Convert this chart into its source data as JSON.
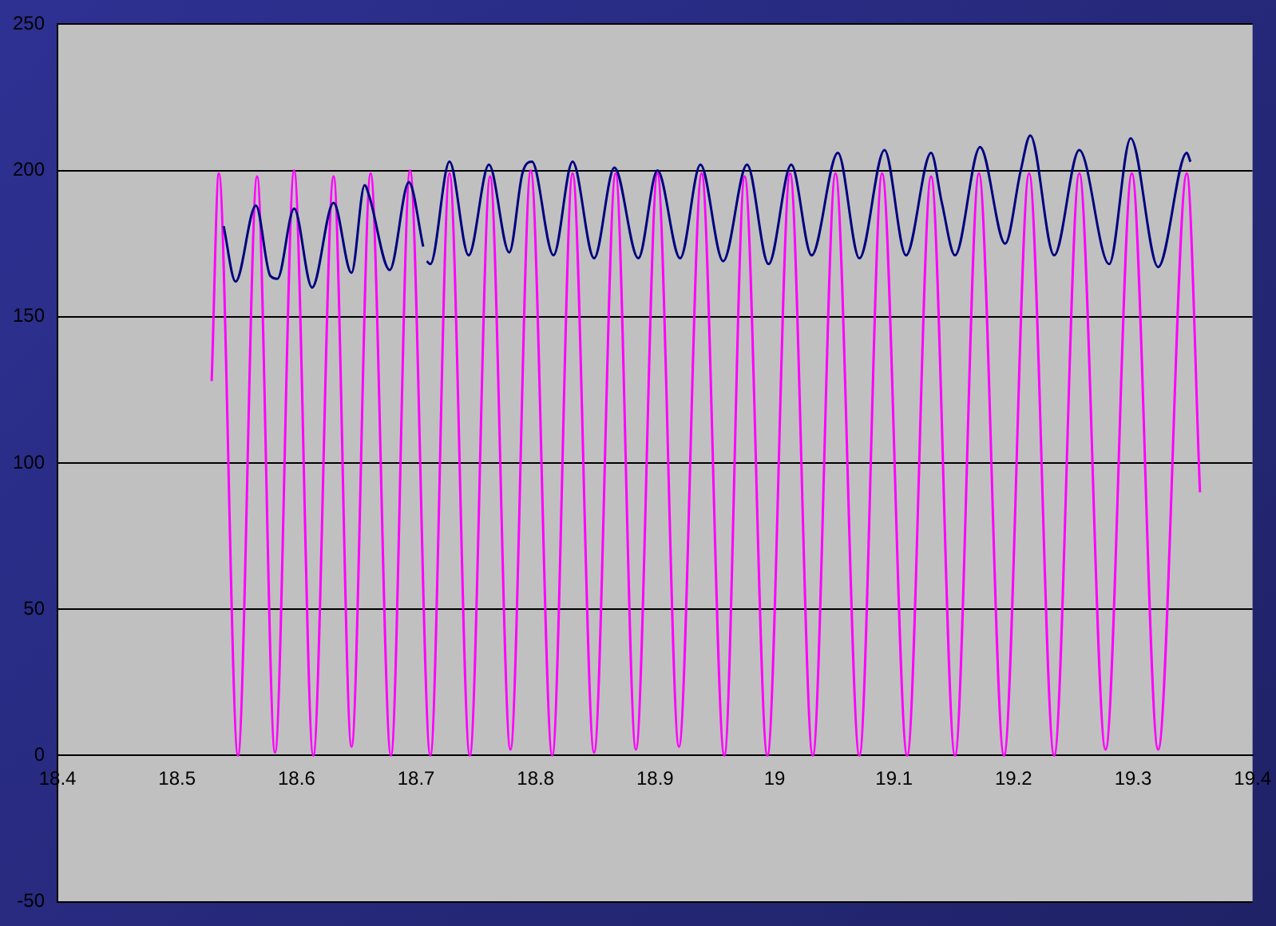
{
  "chart_data": {
    "type": "line",
    "xlim": [
      18.4,
      19.4
    ],
    "xticks": [
      18.4,
      18.5,
      18.6,
      18.7,
      18.8,
      18.9,
      19,
      19.1,
      19.2,
      19.3,
      19.4
    ],
    "ylim": [
      -50,
      250
    ],
    "yticks": [
      -50,
      0,
      50,
      100,
      150,
      200,
      250
    ],
    "grid": "y",
    "legend": false,
    "marker": "none",
    "line_style": "solid",
    "series": [
      {
        "color": "#000080",
        "x": [
          18.539,
          18.549,
          18.566,
          18.578,
          18.584,
          18.598,
          18.613,
          18.631,
          18.646,
          18.657,
          18.661,
          18.678,
          18.694,
          18.706,
          18.7075,
          18.709,
          18.712,
          18.728,
          18.744,
          18.761,
          18.778,
          18.789,
          18.797,
          18.815,
          18.831,
          18.849,
          18.866,
          18.886,
          18.902,
          18.921,
          18.938,
          18.957,
          18.977,
          18.995,
          19.014,
          19.031,
          19.053,
          19.071,
          19.092,
          19.11,
          19.131,
          19.14,
          19.151,
          19.172,
          19.193,
          19.206,
          19.214,
          19.234,
          19.255,
          19.28,
          19.298,
          19.321,
          19.345,
          19.348
        ],
        "values": [
          181,
          162,
          188,
          164,
          163,
          187,
          160,
          189,
          165,
          195,
          191,
          166,
          196,
          174,
          null,
          169,
          168,
          203,
          171,
          202,
          172,
          199,
          203,
          171,
          203,
          170,
          201,
          170,
          200,
          170,
          202,
          169,
          202,
          168,
          202,
          171,
          206,
          170,
          207,
          171,
          206,
          189,
          171,
          208,
          175,
          200,
          212,
          171,
          207,
          168,
          211,
          167,
          206,
          203
        ]
      },
      {
        "color": "#ff00ff",
        "x": [
          18.529,
          18.535,
          18.551,
          18.567,
          18.582,
          18.598,
          18.614,
          18.631,
          18.646,
          18.662,
          18.679,
          18.695,
          18.712,
          18.728,
          18.745,
          18.762,
          18.779,
          18.796,
          18.814,
          18.831,
          18.849,
          18.867,
          18.884,
          18.902,
          18.92,
          18.939,
          18.958,
          18.975,
          18.994,
          19.013,
          19.032,
          19.051,
          19.071,
          19.09,
          19.111,
          19.131,
          19.151,
          19.171,
          19.192,
          19.213,
          19.234,
          19.255,
          19.277,
          19.299,
          19.321,
          19.345,
          19.356
        ],
        "values": [
          128,
          199,
          0,
          198,
          1,
          200,
          0,
          198,
          3,
          199,
          0,
          200,
          0,
          199,
          0,
          198,
          2,
          200,
          0,
          199,
          1,
          199,
          2,
          199,
          3,
          199,
          0,
          198,
          0,
          199,
          0,
          199,
          0,
          199,
          0,
          198,
          0,
          199,
          0,
          199,
          0,
          199,
          2,
          199,
          2,
          199,
          90
        ]
      }
    ]
  }
}
